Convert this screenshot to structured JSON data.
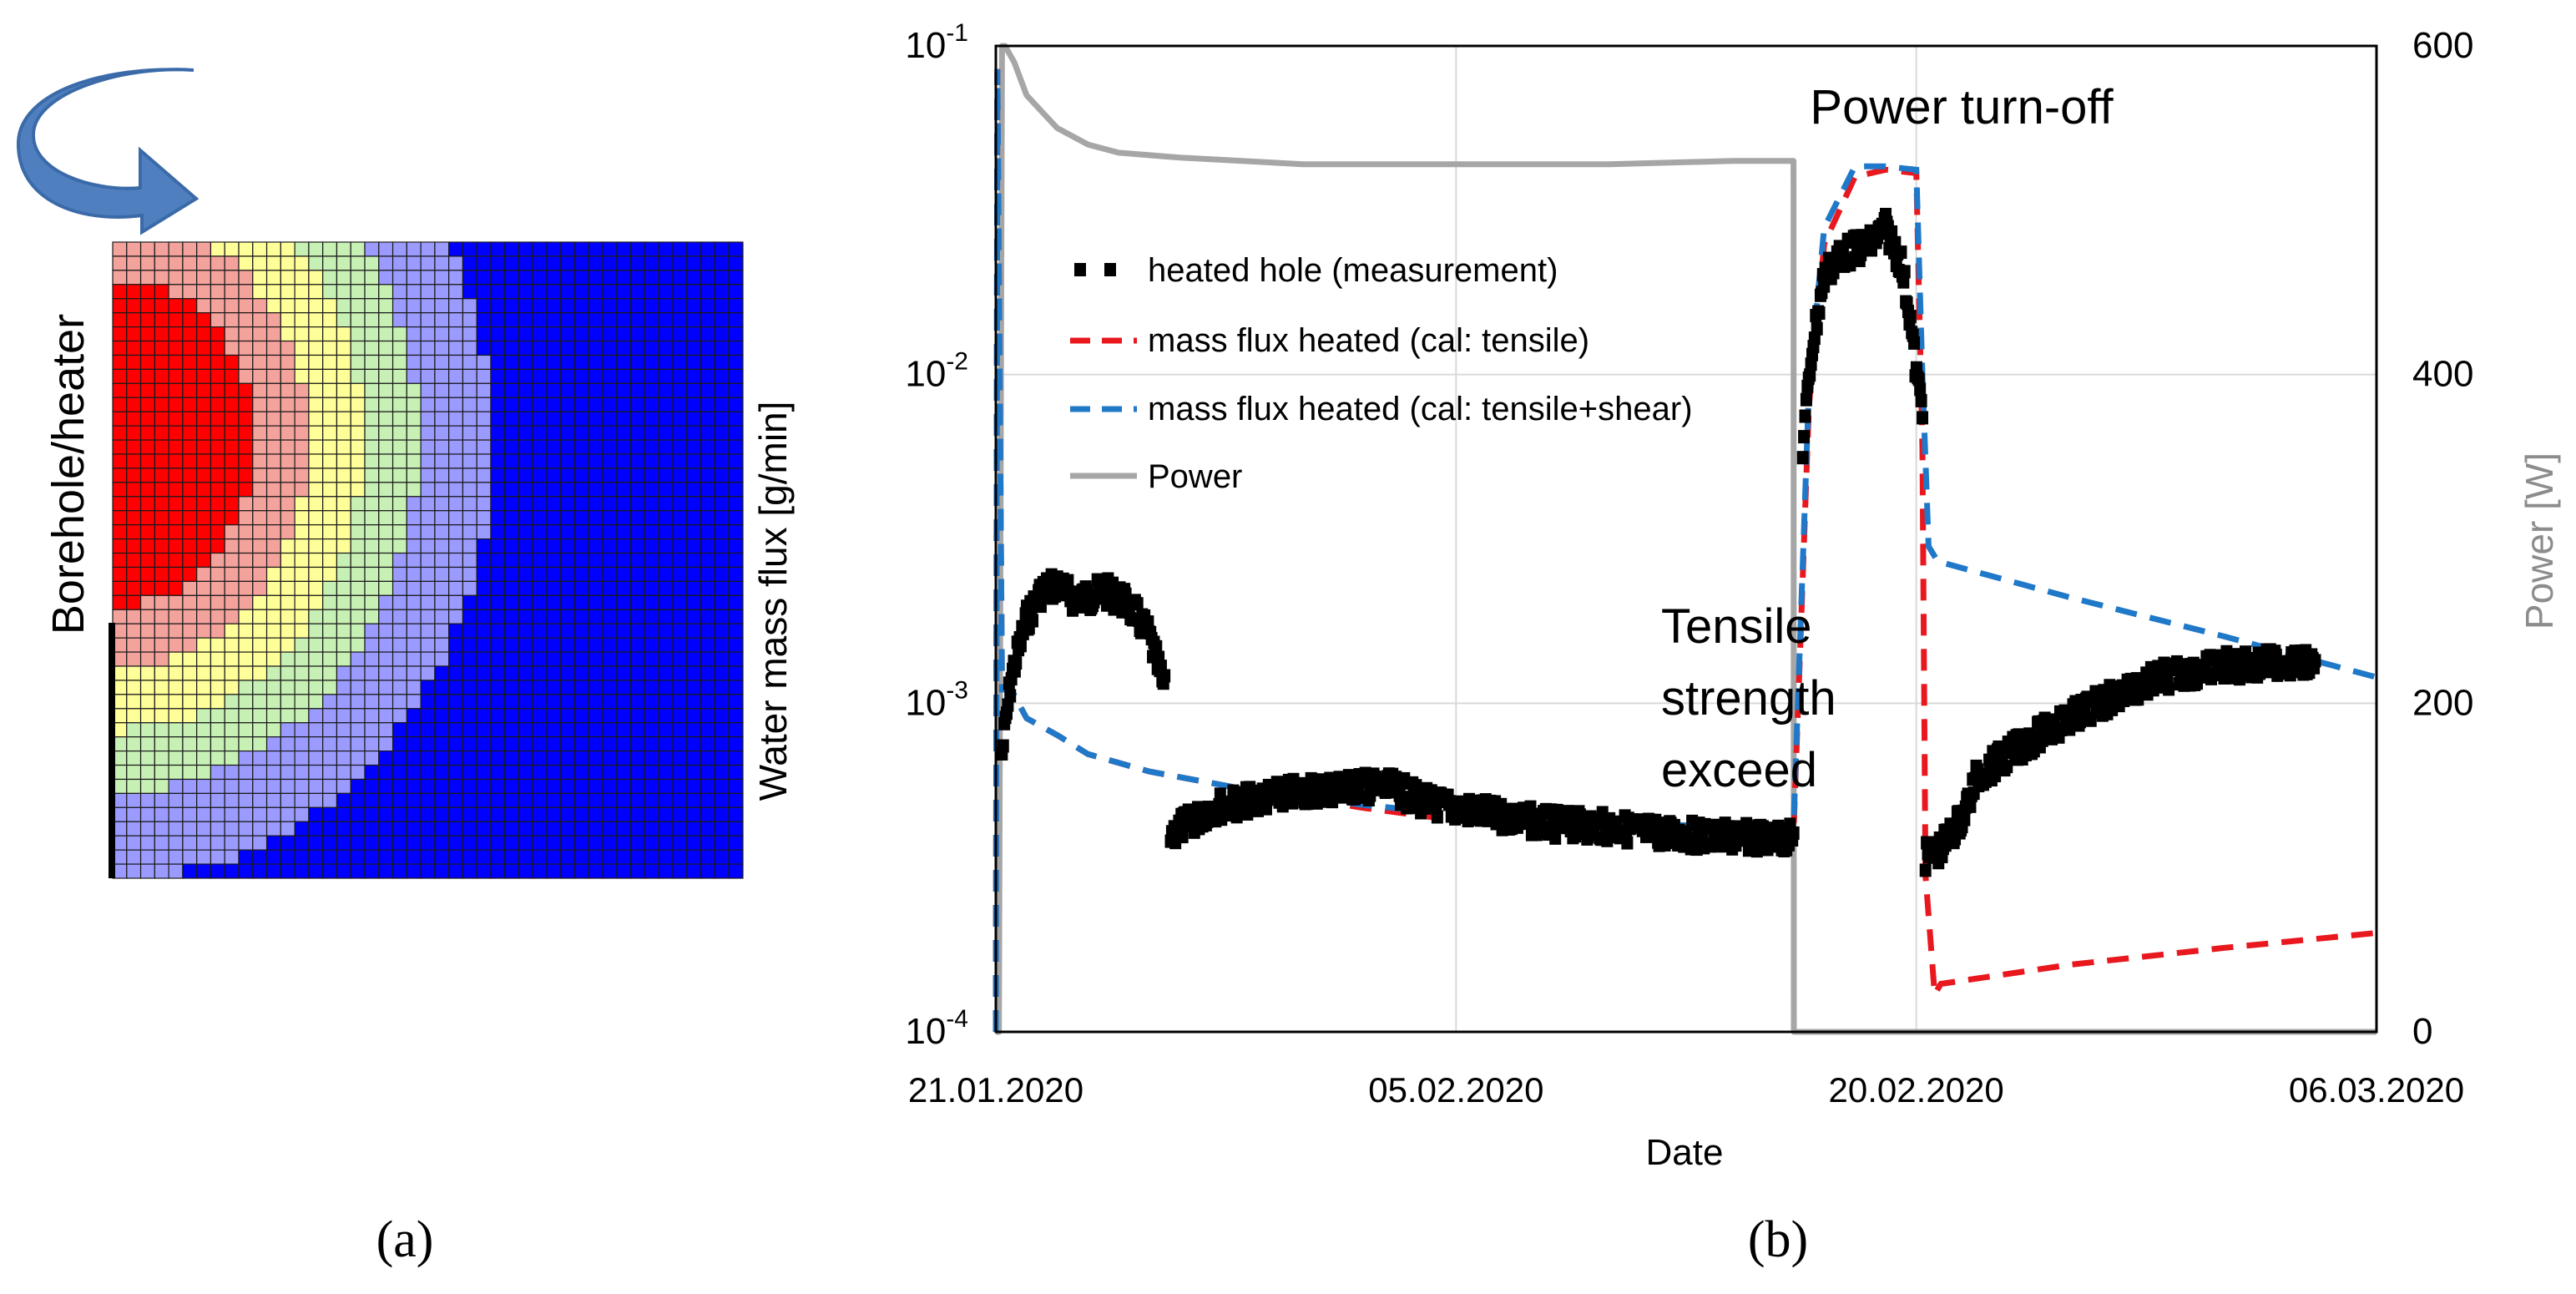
{
  "panel_a": {
    "label": "(a)",
    "vertical_label": "Borehole/heater",
    "colors": [
      "#ff0000",
      "#f4a29c",
      "#ffff99",
      "#c6f0b4",
      "#9b9bff",
      "#0000ff"
    ],
    "grid_cols": 45,
    "grid_rows": 45
  },
  "panel_b": {
    "label": "(b)",
    "annotations": {
      "power_off": "Power turn-off",
      "tensile_line1": "Tensile",
      "tensile_line2": "strength",
      "tensile_line3": "exceed"
    }
  },
  "chart_data": {
    "type": "line",
    "xlabel": "Date",
    "ylabel_left": "Water mass flux [g/min]",
    "ylabel_right": "Power [W]",
    "x_ticks": [
      "21.01.2020",
      "05.02.2020",
      "20.02.2020",
      "06.03.2020"
    ],
    "x_range_days": [
      0,
      45
    ],
    "y_left_scale": "log",
    "y_left_range": [
      0.0001,
      0.1
    ],
    "y_left_ticks": [
      {
        "value": 0.1,
        "base": "10",
        "exp": "-1"
      },
      {
        "value": 0.01,
        "base": "10",
        "exp": "-2"
      },
      {
        "value": 0.001,
        "base": "10",
        "exp": "-3"
      },
      {
        "value": 0.0001,
        "base": "10",
        "exp": "-4"
      }
    ],
    "y_right_range": [
      0,
      600
    ],
    "y_right_ticks": [
      "0",
      "200",
      "400",
      "600"
    ],
    "legend": [
      {
        "label": "heated hole (measurement)",
        "color": "#000000",
        "style": "marker"
      },
      {
        "label": "mass flux heated (cal: tensile)",
        "color": "#e8181e",
        "style": "dashed"
      },
      {
        "label": "mass flux heated (cal: tensile+shear)",
        "color": "#1f78c8",
        "style": "dashed"
      },
      {
        "label": "Power",
        "color": "#a6a6a6",
        "style": "solid"
      }
    ],
    "series": [
      {
        "name": "mass flux heated (cal: tensile)",
        "axis": "left",
        "color": "#e8181e",
        "x": [
          0,
          0.05,
          0.2,
          0.5,
          1,
          2,
          3,
          5,
          8,
          12,
          15,
          20,
          25,
          26,
          26.5,
          27,
          28,
          29,
          30,
          30.2,
          30.3,
          30.6,
          30.8,
          35,
          40,
          45
        ],
        "y": [
          0.0001,
          0.085,
          0.0011,
          0.0011,
          0.0009,
          0.0008,
          0.0007,
          0.00062,
          0.00055,
          0.00048,
          0.00044,
          0.00042,
          0.0004,
          0.0004,
          0.008,
          0.025,
          0.04,
          0.042,
          0.041,
          0.006,
          0.0003,
          0.00013,
          0.00014,
          0.00016,
          0.00018,
          0.0002
        ]
      },
      {
        "name": "mass flux heated (cal: tensile+shear)",
        "axis": "left",
        "color": "#1f78c8",
        "x": [
          0,
          0.05,
          0.2,
          0.5,
          1,
          2,
          3,
          5,
          8,
          12,
          15,
          20,
          25,
          26,
          26.5,
          27,
          28,
          29,
          30,
          30.2,
          30.4,
          30.7,
          35,
          40,
          45
        ],
        "y": [
          0.0001,
          0.085,
          0.0011,
          0.0011,
          0.0009,
          0.0008,
          0.0007,
          0.00062,
          0.00055,
          0.00049,
          0.00046,
          0.00043,
          0.00042,
          0.00042,
          0.009,
          0.028,
          0.043,
          0.043,
          0.042,
          0.01,
          0.003,
          0.0027,
          0.0021,
          0.0016,
          0.0012
        ]
      },
      {
        "name": "Power",
        "axis": "right",
        "color": "#a6a6a6",
        "x": [
          0,
          0.1,
          0.2,
          0.3,
          0.6,
          1,
          1.5,
          2,
          3,
          4,
          6,
          10,
          15,
          20,
          24,
          26,
          26.01,
          26.3,
          45
        ],
        "y": [
          0,
          0,
          600,
          600,
          590,
          570,
          560,
          550,
          540,
          535,
          532,
          528,
          528,
          528,
          530,
          530,
          0,
          0,
          0
        ]
      },
      {
        "name": "heated hole (measurement)",
        "axis": "left",
        "color": "#000000",
        "segments": [
          {
            "x": [
              0.2,
              0.5,
              1,
              1.5,
              2,
              2.5,
              3,
              3.5,
              4,
              4.5,
              5,
              5.5
            ],
            "y": [
              0.0007,
              0.0012,
              0.0018,
              0.0022,
              0.0023,
              0.0021,
              0.0021,
              0.0022,
              0.0021,
              0.0019,
              0.0016,
              0.0011
            ]
          },
          {
            "x": [
              5.7,
              6,
              6.5,
              7,
              8,
              9,
              10,
              11,
              12,
              13,
              14,
              16,
              18,
              20,
              22,
              24,
              26
            ],
            "y": [
              0.0004,
              0.00042,
              0.00044,
              0.00048,
              0.0005,
              0.00052,
              0.00054,
              0.00055,
              0.00056,
              0.00055,
              0.0005,
              0.00046,
              0.00043,
              0.00042,
              0.0004,
              0.00039,
              0.00039
            ]
          },
          {
            "x": [
              26.3,
              26.6,
              27,
              27.5,
              28,
              28.5,
              29,
              29.5,
              29.8,
              30,
              30.2
            ],
            "y": [
              0.006,
              0.012,
              0.02,
              0.023,
              0.024,
              0.025,
              0.028,
              0.022,
              0.015,
              0.01,
              0.008
            ]
          },
          {
            "x": [
              30.3,
              30.8,
              31.5,
              32,
              33,
              34,
              35,
              36,
              37,
              38,
              39,
              40,
              41,
              42,
              43
            ],
            "y": [
              0.00034,
              0.00036,
              0.00045,
              0.0006,
              0.0007,
              0.0008,
              0.0009,
              0.001,
              0.0011,
              0.0012,
              0.00125,
              0.0013,
              0.0013,
              0.00135,
              0.0013
            ]
          }
        ]
      }
    ]
  }
}
